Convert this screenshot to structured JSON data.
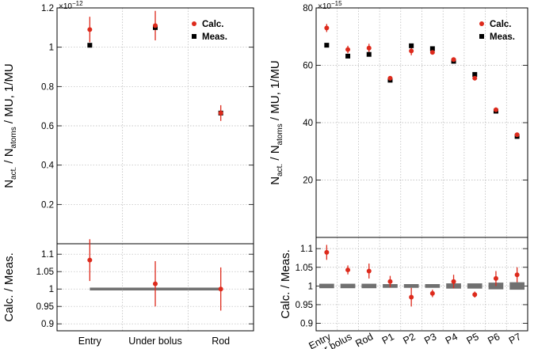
{
  "colors": {
    "calc": "#dd2a1c",
    "meas": "#000000",
    "band": "#707070",
    "grid": "#b4b4b4"
  },
  "chart_data": [
    {
      "id": "left",
      "type": "scatter",
      "ylabel": {
        "main": "N",
        "sub1": "act.",
        "mid": " / N",
        "sub2": "atoms",
        "tail": " / MU, 1/MU"
      },
      "exponent": {
        "base": "×10",
        "power": "−12"
      },
      "categories": [
        "Entry",
        "Under bolus",
        "Rod"
      ],
      "ylim": [
        0,
        1.2
      ],
      "yticks": [
        0.2,
        0.4,
        0.6,
        0.8,
        1,
        1.2
      ],
      "ytick_labels": [
        "0.2",
        "0.4",
        "0.6",
        "0.8",
        "1",
        "1.2"
      ],
      "grid": true,
      "legend": {
        "position": "top-right",
        "entries": [
          "Calc.",
          "Meas."
        ]
      },
      "series": [
        {
          "name": "Calc.",
          "marker": "circle",
          "values": [
            1.09,
            1.11,
            0.665
          ],
          "err": [
            0.065,
            0.075,
            0.04
          ]
        },
        {
          "name": "Meas.",
          "marker": "square",
          "values": [
            1.01,
            1.1,
            0.665
          ],
          "err": [
            0,
            0,
            0
          ]
        }
      ],
      "ratio": {
        "ylabel": "Calc. / Meas.",
        "ylim": [
          0.88,
          1.13
        ],
        "yticks": [
          0.9,
          0.95,
          1,
          1.05,
          1.1
        ],
        "ytick_labels": [
          "0.9",
          "0.95",
          "1",
          "1.05",
          "1.1"
        ],
        "values": [
          1.083,
          1.015,
          1.0
        ],
        "err": [
          0.06,
          0.065,
          0.062
        ],
        "band_halfwidth": [
          0.004,
          0.004,
          0.004
        ]
      }
    },
    {
      "id": "right",
      "type": "scatter",
      "ylabel": {
        "main": "N",
        "sub1": "act.",
        "mid": " / N",
        "sub2": "atoms",
        "tail": " / MU, 1/MU"
      },
      "exponent": {
        "base": "×10",
        "power": "−15"
      },
      "categories": [
        "Entry",
        "Under bolus",
        "Rod",
        "P1",
        "P2",
        "P3",
        "P4",
        "P5",
        "P6",
        "P7"
      ],
      "ylim": [
        0,
        80
      ],
      "yticks": [
        20,
        40,
        60,
        80
      ],
      "ytick_labels": [
        "20",
        "40",
        "60",
        "80"
      ],
      "grid": true,
      "legend": {
        "position": "top-right",
        "entries": [
          "Calc.",
          "Meas."
        ]
      },
      "series": [
        {
          "name": "Calc.",
          "marker": "circle",
          "values": [
            73.0,
            65.5,
            66.0,
            55.5,
            65.0,
            64.5,
            62.0,
            55.5,
            44.5,
            35.8
          ],
          "err": [
            1.4,
            1.3,
            1.5,
            0.7,
            1.5,
            0.6,
            0.6,
            0.5,
            0.8,
            0.7
          ]
        },
        {
          "name": "Meas.",
          "marker": "square",
          "values": [
            67.0,
            63.2,
            63.8,
            54.8,
            66.8,
            65.8,
            61.4,
            56.8,
            44.0,
            35.2
          ],
          "err": [
            0,
            0,
            0,
            0,
            0,
            0,
            0,
            0,
            0,
            0
          ]
        }
      ],
      "ratio": {
        "ylabel": "Calc. / Meas.",
        "ylim": [
          0.88,
          1.13
        ],
        "yticks": [
          0.9,
          0.95,
          1,
          1.05,
          1.1
        ],
        "ytick_labels": [
          "0.9",
          "0.95",
          "1",
          "1.05",
          "1.1"
        ],
        "values": [
          1.09,
          1.043,
          1.04,
          1.012,
          0.97,
          0.98,
          1.012,
          0.977,
          1.02,
          1.03
        ],
        "err": [
          0.02,
          0.012,
          0.02,
          0.015,
          0.025,
          0.01,
          0.018,
          0.008,
          0.02,
          0.02
        ],
        "band_halfwidth": [
          0.006,
          0.006,
          0.006,
          0.005,
          0.005,
          0.005,
          0.007,
          0.007,
          0.009,
          0.01
        ]
      }
    }
  ]
}
